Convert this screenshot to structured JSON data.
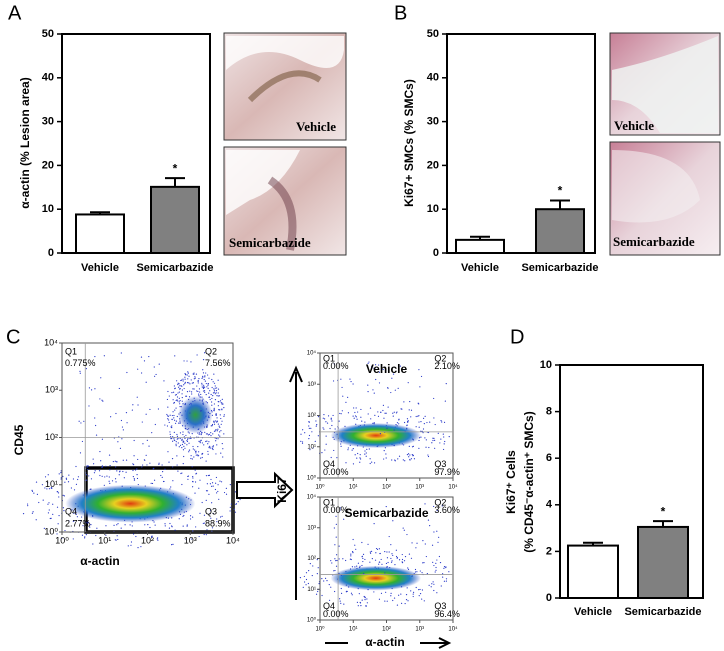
{
  "panel_labels": [
    "A",
    "B",
    "C",
    "D"
  ],
  "micrograph_labels": {
    "A": [
      "Vehicle",
      "Semicarbazide"
    ],
    "B": [
      "Vehicle",
      "Semicarbazide"
    ]
  },
  "chart_data": [
    {
      "type": "bar",
      "ylabel": [
        "α-actin (% Lesion area)"
      ],
      "categories": [
        "Vehicle",
        "Semicarbazide"
      ],
      "values": [
        8.8,
        15.1
      ],
      "errors": [
        0.5,
        2.0
      ],
      "significance": [
        null,
        "*"
      ],
      "colors": [
        "#ffffff",
        "#808080"
      ],
      "ylim": [
        0,
        50
      ],
      "yticks": [
        0,
        10,
        20,
        30,
        40,
        50
      ]
    },
    {
      "type": "bar",
      "ylabel": [
        "Ki67+ SMCs (% SMCs)"
      ],
      "categories": [
        "Vehicle",
        "Semicarbazide"
      ],
      "values": [
        3.0,
        10.0
      ],
      "errors": [
        0.7,
        2.0
      ],
      "significance": [
        null,
        "*"
      ],
      "colors": [
        "#ffffff",
        "#808080"
      ],
      "ylim": [
        0,
        50
      ],
      "yticks": [
        0,
        10,
        20,
        30,
        40,
        50
      ]
    },
    {
      "type": "flow",
      "xlabel": "α-actin",
      "ylabel": "CD45",
      "log": true,
      "xlim": [
        1,
        10000
      ],
      "ylim": [
        1,
        10000
      ],
      "xticks": [
        {
          "value": 1,
          "label": "10⁰"
        },
        {
          "value": 10,
          "label": "10¹"
        },
        {
          "value": 100,
          "label": "10²"
        },
        {
          "value": 1000,
          "label": "10³"
        },
        {
          "value": 10000,
          "label": "10⁴"
        }
      ],
      "yticks": [
        {
          "value": 1,
          "label": "10⁰"
        },
        {
          "value": 10,
          "label": "10¹"
        },
        {
          "value": 100,
          "label": "10²"
        },
        {
          "value": 1000,
          "label": "10³"
        },
        {
          "value": 10000,
          "label": "10⁴"
        }
      ],
      "gate": [
        3.5,
        100
      ],
      "quadrant_names": [
        "Q1",
        "Q2",
        "Q3",
        "Q4"
      ],
      "values": [
        0.775,
        7.56,
        88.9,
        2.77
      ],
      "value_labels": [
        "0.775%",
        "7.56%",
        "88.9%",
        "2.77%"
      ]
    },
    {
      "type": "flow",
      "title": "Vehicle",
      "ylabel": "Ki67",
      "log": true,
      "xlim": [
        1,
        10000
      ],
      "ylim": [
        1,
        10000
      ],
      "xticks": [
        {
          "value": 1,
          "label": "10⁰"
        },
        {
          "value": 10,
          "label": "10¹"
        },
        {
          "value": 100,
          "label": "10²"
        },
        {
          "value": 1000,
          "label": "10³"
        },
        {
          "value": 10000,
          "label": "10⁴"
        }
      ],
      "yticks": [
        {
          "value": 1,
          "label": "10⁰"
        },
        {
          "value": 10,
          "label": "10¹"
        },
        {
          "value": 100,
          "label": "10²"
        },
        {
          "value": 1000,
          "label": "10³"
        },
        {
          "value": 10000,
          "label": "10⁴"
        }
      ],
      "gate": [
        3.5,
        30
      ],
      "quadrant_names": [
        "Q1",
        "Q2",
        "Q3",
        "Q4"
      ],
      "values": [
        0.0,
        2.1,
        97.9,
        0.0
      ],
      "value_labels": [
        "0.00%",
        "2.10%",
        "97.9%",
        "0.00%"
      ]
    },
    {
      "type": "flow",
      "title": "Semicarbazide",
      "xlabel": "α-actin",
      "log": true,
      "xlim": [
        1,
        10000
      ],
      "ylim": [
        1,
        10000
      ],
      "xticks": [
        {
          "value": 1,
          "label": "10⁰"
        },
        {
          "value": 10,
          "label": "10¹"
        },
        {
          "value": 100,
          "label": "10²"
        },
        {
          "value": 1000,
          "label": "10³"
        },
        {
          "value": 10000,
          "label": "10⁴"
        }
      ],
      "yticks": [
        {
          "value": 1,
          "label": "10⁰"
        },
        {
          "value": 10,
          "label": "10¹"
        },
        {
          "value": 100,
          "label": "10²"
        },
        {
          "value": 1000,
          "label": "10³"
        },
        {
          "value": 10000,
          "label": "10⁴"
        }
      ],
      "gate": [
        3.5,
        30
      ],
      "quadrant_names": [
        "Q1",
        "Q2",
        "Q3",
        "Q4"
      ],
      "values": [
        0.0,
        3.6,
        96.4,
        0.0
      ],
      "value_labels": [
        "0.00%",
        "3.60%",
        "96.4%",
        "0.00%"
      ]
    },
    {
      "type": "bar",
      "ylabel": [
        "Ki67⁺ Cells",
        "(% CD45⁻α-actin⁺ SMCs)"
      ],
      "categories": [
        "Vehicle",
        "Semicarbazide"
      ],
      "values": [
        2.25,
        3.05
      ],
      "errors": [
        0.12,
        0.25
      ],
      "significance": [
        null,
        "*"
      ],
      "colors": [
        "#ffffff",
        "#808080"
      ],
      "ylim": [
        0,
        10
      ],
      "yticks": [
        0,
        2,
        4,
        6,
        8,
        10
      ]
    }
  ]
}
